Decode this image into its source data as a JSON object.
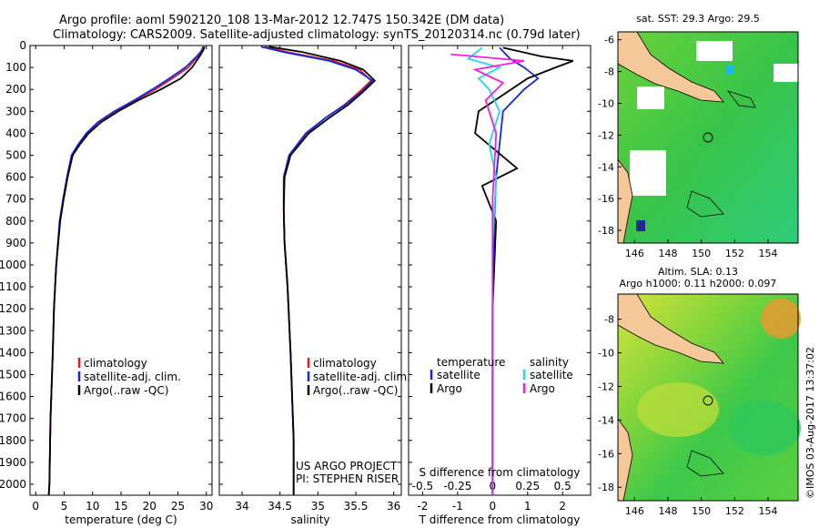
{
  "header": {
    "title_line1": "Argo profile: aoml 5902120_108 13-Mar-2012 12.747S 150.342E (DM data)",
    "title_line2": "Climatology: CARS2009. Satellite-adjusted climatology: synTS_20120314.nc (0.79d later)"
  },
  "watermark": "©IMOS 03-Aug-2017 13:37:02",
  "project_credit": {
    "line1": "US ARGO PROJECT",
    "line2": "PI: STEPHEN RISER"
  },
  "colors": {
    "climatology": "#e8141e",
    "satellite": "#1428e0",
    "argo": "#000000",
    "sal_satellite": "#22d8e8",
    "sal_argo": "#f020e0",
    "land": "#f5c89a",
    "sea_green": "#3cc83c"
  },
  "chart_data": [
    {
      "type": "line",
      "id": "temperature",
      "xlabel": "temperature (deg C)",
      "ylabel": "",
      "xlim": [
        -1,
        31
      ],
      "ylim": [
        2050,
        0
      ],
      "xticks": [
        0,
        5,
        10,
        15,
        20,
        25,
        30
      ],
      "yticks": [
        0,
        100,
        200,
        300,
        400,
        500,
        600,
        700,
        800,
        900,
        1000,
        1100,
        1200,
        1300,
        1400,
        1500,
        1600,
        1700,
        1800,
        1900,
        2000
      ],
      "legend": [
        "climatology",
        "satellite-adj. clim.",
        "Argo(..raw -QC)"
      ],
      "series": [
        {
          "name": "climatology",
          "color": "#e8141e",
          "x": [
            29.4,
            29.2,
            28.5,
            26.8,
            24.0,
            21.0,
            17.5,
            14.0,
            11.0,
            9.0,
            7.6,
            6.4,
            5.6,
            4.9,
            4.3,
            3.6,
            3.2,
            3.0,
            2.6,
            2.4,
            2.3
          ],
          "y": [
            5,
            20,
            50,
            100,
            150,
            200,
            250,
            300,
            350,
            400,
            450,
            500,
            600,
            700,
            800,
            1000,
            1200,
            1400,
            1700,
            2000,
            2050
          ]
        },
        {
          "name": "satellite-adj. clim.",
          "color": "#1428e0",
          "x": [
            29.6,
            29.3,
            28.3,
            26.3,
            23.5,
            20.5,
            17.3,
            13.8,
            10.9,
            8.9,
            7.5,
            6.3,
            5.5,
            4.8,
            4.2,
            3.6,
            3.2,
            3.0,
            2.6,
            2.4,
            2.3
          ],
          "y": [
            5,
            20,
            50,
            100,
            150,
            200,
            250,
            300,
            350,
            400,
            450,
            500,
            600,
            700,
            800,
            1000,
            1200,
            1400,
            1700,
            2000,
            2050
          ]
        },
        {
          "name": "Argo(..raw -QC)",
          "color": "#000000",
          "x": [
            29.7,
            29.5,
            28.8,
            27.5,
            25.5,
            22.0,
            18.0,
            14.5,
            11.5,
            9.3,
            7.8,
            6.5,
            5.6,
            4.9,
            4.3,
            3.6,
            3.2,
            3.0,
            2.6,
            2.4,
            2.3
          ],
          "y": [
            5,
            20,
            50,
            100,
            150,
            200,
            250,
            300,
            350,
            400,
            450,
            500,
            600,
            700,
            800,
            1000,
            1200,
            1400,
            1700,
            2000,
            2050
          ]
        }
      ]
    },
    {
      "type": "line",
      "id": "salinity",
      "xlabel": "salinity",
      "xlim": [
        33.7,
        36.1
      ],
      "ylim": [
        2050,
        0
      ],
      "xticks": [
        34,
        34.5,
        35,
        35.5,
        36
      ],
      "legend": [
        "climatology",
        "satellite-adj. clim.",
        "Argo(..raw -QC)"
      ],
      "series": [
        {
          "name": "climatology",
          "color": "#e8141e",
          "x": [
            34.3,
            34.6,
            35.2,
            35.55,
            35.7,
            35.55,
            35.35,
            35.1,
            34.85,
            34.62,
            34.55,
            34.55,
            34.56,
            34.6,
            34.64,
            34.68,
            34.68
          ],
          "y": [
            5,
            30,
            70,
            110,
            160,
            210,
            270,
            330,
            400,
            500,
            600,
            750,
            900,
            1100,
            1400,
            1800,
            2050
          ]
        },
        {
          "name": "satellite-adj. clim.",
          "color": "#1428e0",
          "x": [
            34.25,
            34.55,
            35.15,
            35.5,
            35.72,
            35.58,
            35.36,
            35.1,
            34.84,
            34.62,
            34.55,
            34.55,
            34.56,
            34.6,
            34.64,
            34.68,
            34.68
          ],
          "y": [
            5,
            30,
            70,
            110,
            160,
            210,
            270,
            330,
            400,
            500,
            600,
            750,
            900,
            1100,
            1400,
            1800,
            2050
          ]
        },
        {
          "name": "Argo(..raw -QC)",
          "color": "#000000",
          "x": [
            34.35,
            34.8,
            35.3,
            35.6,
            35.75,
            35.6,
            35.4,
            35.15,
            34.88,
            34.64,
            34.56,
            34.55,
            34.56,
            34.6,
            34.64,
            34.68,
            34.68
          ],
          "y": [
            5,
            30,
            70,
            110,
            160,
            210,
            270,
            330,
            400,
            500,
            600,
            750,
            900,
            1100,
            1400,
            1800,
            2050
          ]
        }
      ]
    },
    {
      "type": "line",
      "id": "differences",
      "xlabel_bottom": "T difference from climatology",
      "xlabel_top": "S difference from climatology",
      "xlim": [
        -2.4,
        2.8
      ],
      "ylim": [
        2050,
        0
      ],
      "xticks_bottom": [
        -2,
        -1,
        0,
        1,
        2
      ],
      "xticks_top_labels": [
        "-0.5",
        "-0.25",
        "0",
        "0.25",
        "0.5"
      ],
      "xticks_top_values": [
        -2,
        -1,
        0,
        1,
        2
      ],
      "legend_temperature_title": "temperature",
      "legend_salinity_title": "salinity",
      "legend": [
        "satellite",
        "Argo",
        "satellite",
        "Argo"
      ],
      "series": [
        {
          "name": "T satellite",
          "color": "#1428e0",
          "x": [
            0.2,
            0.5,
            0.9,
            1.3,
            0.9,
            0.3,
            0.2,
            0.1,
            0.05,
            0.0,
            0.0,
            0.0
          ],
          "y": [
            10,
            60,
            100,
            150,
            200,
            300,
            450,
            600,
            800,
            1200,
            1600,
            2050
          ]
        },
        {
          "name": "T Argo",
          "color": "#000000",
          "x": [
            0.3,
            1.4,
            2.3,
            1.8,
            1.0,
            -0.4,
            -0.5,
            0.7,
            -0.3,
            0.1,
            0.0,
            0.0,
            0.0
          ],
          "y": [
            10,
            50,
            70,
            100,
            150,
            300,
            400,
            560,
            640,
            800,
            1200,
            1600,
            2050
          ]
        },
        {
          "name": "S satellite",
          "color": "#22d8e8",
          "x": [
            -0.3,
            -0.7,
            0.2,
            -0.4,
            -0.1,
            0.2,
            -0.1,
            0.1,
            0.0,
            0.0,
            0.0
          ],
          "y": [
            10,
            60,
            100,
            150,
            200,
            300,
            450,
            600,
            900,
            1400,
            2050
          ]
        },
        {
          "name": "S Argo",
          "color": "#f020e0",
          "x": [
            -1.2,
            0.9,
            -0.5,
            0.3,
            -0.2,
            0.1,
            0.0,
            0.0,
            0.0
          ],
          "y": [
            40,
            70,
            110,
            170,
            250,
            400,
            700,
            1200,
            2050
          ]
        }
      ]
    },
    {
      "type": "heatmap",
      "id": "sst_map",
      "title": "sat. SST: 29.3 Argo: 29.5",
      "xticks": [
        146,
        148,
        150,
        152,
        154
      ],
      "yticks": [
        -6,
        -8,
        -10,
        -12,
        -14,
        -16,
        -18
      ],
      "xlim": [
        145,
        155.8
      ],
      "ylim": [
        -18.8,
        -5.5
      ],
      "argo_position": {
        "lon": 150.342,
        "lat": -12.747
      }
    },
    {
      "type": "heatmap",
      "id": "sla_map",
      "title_line1": "Altim. SLA: 0.13",
      "title_line2": "Argo h1000: 0.11 h2000: 0.097",
      "xticks": [
        146,
        148,
        150,
        152,
        154
      ],
      "yticks": [
        -8,
        -10,
        -12,
        -14,
        -16,
        -18
      ],
      "xlim": [
        145,
        155.8
      ],
      "ylim": [
        -18.8,
        -6.5
      ],
      "argo_position": {
        "lon": 150.342,
        "lat": -12.747
      }
    }
  ]
}
